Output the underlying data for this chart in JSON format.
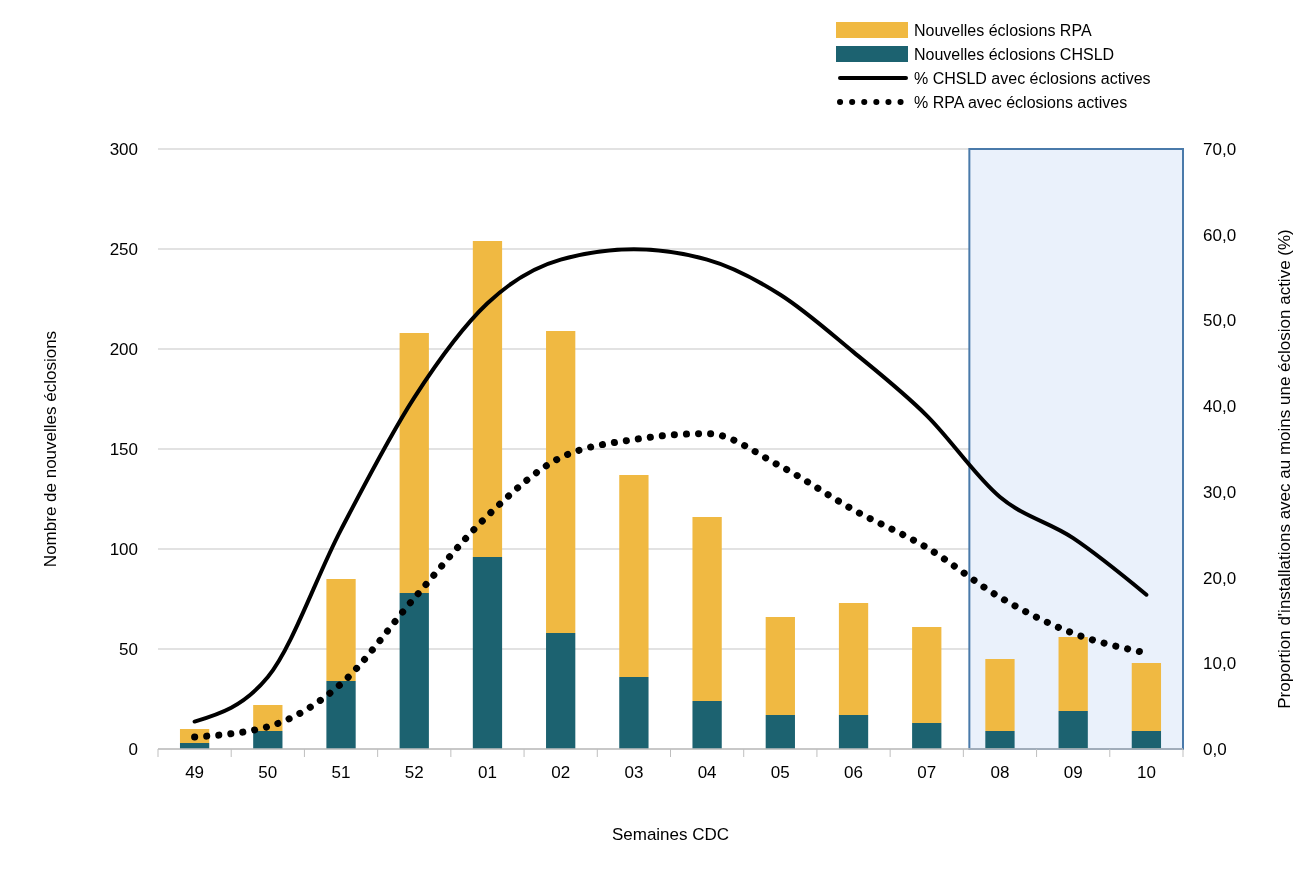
{
  "chart_data": {
    "type": "bar",
    "stacked": true,
    "xlabel": "Semaines CDC",
    "ylabel": "Nombre de nouvelles éclosions",
    "y2label": "Proportion d'installations avec au moins une éclosion active (%)",
    "categories": [
      "49",
      "50",
      "51",
      "52",
      "01",
      "02",
      "03",
      "04",
      "05",
      "06",
      "07",
      "08",
      "09",
      "10"
    ],
    "series": [
      {
        "name": "Nouvelles éclosions CHSLD",
        "color": "#1c6270",
        "values": [
          3,
          9,
          34,
          78,
          96,
          58,
          36,
          24,
          17,
          17,
          13,
          9,
          19,
          9
        ]
      },
      {
        "name": "Nouvelles éclosions RPA",
        "color": "#f0b942",
        "values": [
          7,
          13,
          51,
          130,
          158,
          151,
          101,
          92,
          49,
          56,
          48,
          36,
          37,
          34
        ]
      },
      {
        "name": "% CHSLD avec éclosions actives",
        "type": "line",
        "axis": "y2",
        "color": "#000000",
        "line_style": "solid",
        "values": [
          3.2,
          8.4,
          25.6,
          41.0,
          52.0,
          57.1,
          58.3,
          57.1,
          53.0,
          46.3,
          38.9,
          29.4,
          24.6,
          18.0
        ]
      },
      {
        "name": "% RPA avec éclosions actives",
        "type": "line",
        "axis": "y2",
        "color": "#000000",
        "line_style": "dotted",
        "values": [
          1.4,
          2.6,
          7.6,
          17.6,
          27.2,
          34.0,
          36.1,
          36.8,
          33.0,
          27.9,
          23.5,
          17.7,
          13.5,
          11.2
        ]
      }
    ],
    "ylim": [
      0,
      300
    ],
    "yticks": [
      0,
      50,
      100,
      150,
      200,
      250,
      300
    ],
    "y2lim": [
      0,
      70
    ],
    "y2ticks": [
      {
        "value": 0,
        "label": "0,0"
      },
      {
        "value": 10,
        "label": "10,0"
      },
      {
        "value": 20,
        "label": "20,0"
      },
      {
        "value": 30,
        "label": "30,0"
      },
      {
        "value": 40,
        "label": "40,0"
      },
      {
        "value": 50,
        "label": "50,0"
      },
      {
        "value": 60,
        "label": "60,0"
      },
      {
        "value": 70,
        "label": "70,0"
      }
    ],
    "bands": [
      {
        "axis": "x",
        "from": "08",
        "to": "10",
        "color": "#eaf1fb"
      }
    ],
    "grid": "y",
    "legend": "top right",
    "marker": "none"
  }
}
